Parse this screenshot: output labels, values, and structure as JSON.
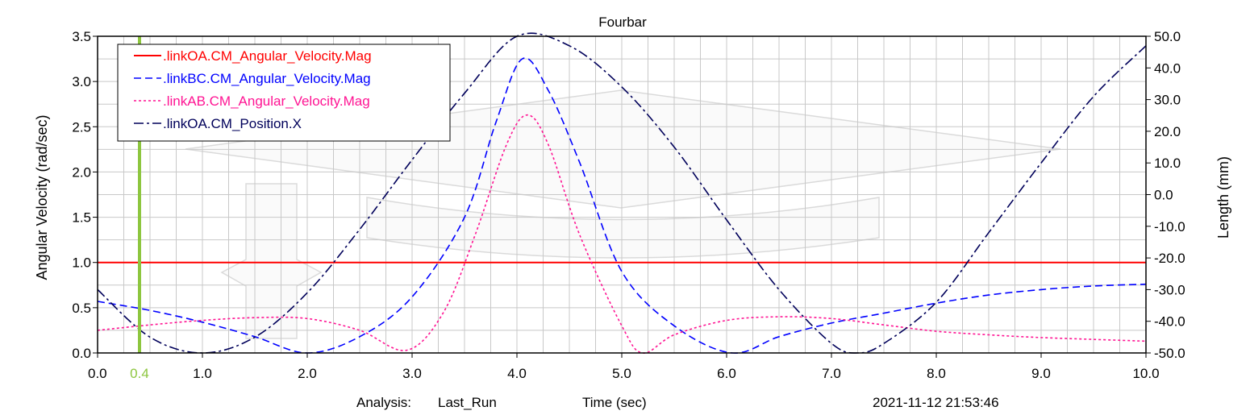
{
  "chart_data": {
    "type": "line",
    "title": "Fourbar",
    "xlabel": "Time (sec)",
    "ylabel": "Angular Velocity (rad/sec)",
    "y2label": "Length (mm)",
    "xlim": [
      0,
      10
    ],
    "ylim": [
      0,
      3.5
    ],
    "y2lim": [
      -50,
      50
    ],
    "x_ticks": [
      "0.0",
      "1.0",
      "2.0",
      "3.0",
      "4.0",
      "5.0",
      "6.0",
      "7.0",
      "8.0",
      "9.0",
      "10.0"
    ],
    "x_tick_values": [
      0,
      1,
      2,
      3,
      4,
      5,
      6,
      7,
      8,
      9,
      10
    ],
    "y_ticks": [
      "0.0",
      "0.5",
      "1.0",
      "1.5",
      "2.0",
      "2.5",
      "3.0",
      "3.5"
    ],
    "y_tick_values": [
      0,
      0.5,
      1.0,
      1.5,
      2.0,
      2.5,
      3.0,
      3.5
    ],
    "y2_ticks": [
      "-50.0",
      "-40.0",
      "-30.0",
      "-20.0",
      "-10.0",
      "0.0",
      "10.0",
      "20.0",
      "30.0",
      "40.0",
      "50.0"
    ],
    "y2_tick_values": [
      -50,
      -40,
      -30,
      -20,
      -10,
      0,
      10,
      20,
      30,
      40,
      50
    ],
    "grid": true,
    "legend_position": "top-left",
    "marker": {
      "label": "0.4",
      "x": 0.4,
      "color": "#8dc63f"
    },
    "series": [
      {
        "name": ".linkOA.CM_Angular_Velocity.Mag",
        "color": "#ff0000",
        "dash": "solid",
        "axis": "left",
        "x": [
          0,
          10
        ],
        "y": [
          1.0,
          1.0
        ]
      },
      {
        "name": ".linkBC.CM_Angular_Velocity.Mag",
        "color": "#0000ff",
        "dash": "dashed",
        "axis": "left",
        "x": [
          0,
          0.5,
          1.0,
          1.5,
          2.0,
          2.5,
          3.0,
          3.5,
          3.8,
          4.05,
          4.3,
          4.6,
          5.0,
          5.5,
          6.05,
          6.5,
          7.0,
          7.5,
          8.0,
          8.5,
          9.0,
          9.5,
          10.0
        ],
        "y": [
          0.57,
          0.47,
          0.34,
          0.18,
          0.0,
          0.18,
          0.62,
          1.5,
          2.55,
          3.25,
          2.9,
          2.1,
          0.9,
          0.3,
          0.0,
          0.18,
          0.33,
          0.44,
          0.55,
          0.64,
          0.7,
          0.74,
          0.76
        ]
      },
      {
        "name": ".linkAB.CM_Angular_Velocity.Mag",
        "color": "#ff1493",
        "dash": "dotted",
        "axis": "left",
        "x": [
          0,
          0.5,
          1.0,
          1.5,
          2.0,
          2.5,
          2.95,
          3.3,
          3.6,
          3.9,
          4.1,
          4.3,
          4.6,
          5.0,
          5.2,
          5.5,
          6.0,
          6.5,
          7.0,
          7.5,
          8.0,
          8.5,
          9.0,
          9.5,
          10.0
        ],
        "y": [
          0.25,
          0.31,
          0.36,
          0.39,
          0.38,
          0.25,
          0.03,
          0.45,
          1.3,
          2.3,
          2.63,
          2.3,
          1.3,
          0.3,
          0.0,
          0.2,
          0.36,
          0.4,
          0.38,
          0.31,
          0.24,
          0.2,
          0.17,
          0.15,
          0.13
        ]
      },
      {
        "name": ".linkOA.CM_Position.X",
        "color": "#00005a",
        "dash": "dashdot",
        "axis": "right",
        "x": [
          0,
          0.5,
          1.0,
          1.5,
          2.0,
          2.5,
          3.0,
          3.5,
          4.0,
          4.5,
          5.0,
          5.5,
          6.0,
          6.5,
          7.0,
          7.25,
          7.5,
          8.0,
          8.5,
          9.0,
          9.5,
          10.0
        ],
        "y": [
          -30,
          -45,
          -50,
          -45,
          -31,
          -11,
          11,
          32,
          50,
          47,
          34,
          15,
          -8,
          -30,
          -47,
          -50,
          -47,
          -34,
          -12,
          10,
          31,
          47
        ]
      }
    ]
  },
  "footer": {
    "analysis_label": "Analysis:",
    "analysis_name": "Last_Run",
    "time_label": "Time (sec)",
    "timestamp": "2021-11-12 21:53:46"
  }
}
